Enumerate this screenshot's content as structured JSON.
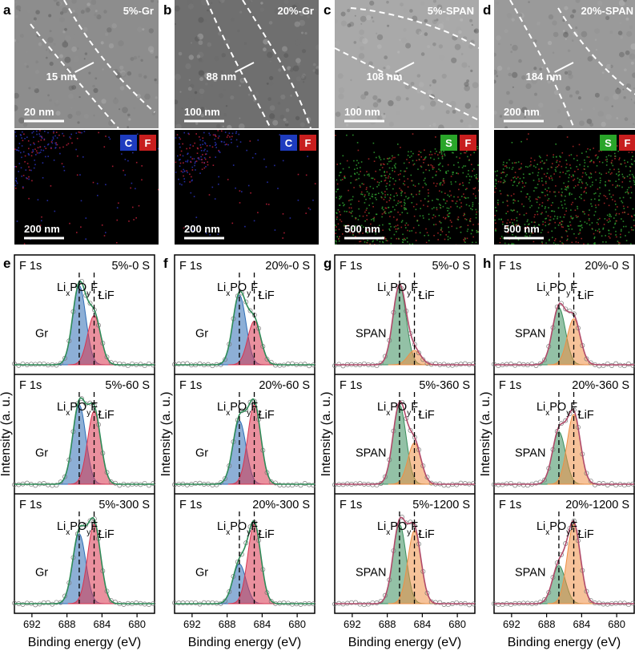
{
  "figure": {
    "image_panels": [
      {
        "letter": "a",
        "label": "5%-Gr",
        "top_scale": "20 nm",
        "dimension": "15 nm",
        "bottom_scale": "200 nm",
        "elements": [
          "C",
          "F"
        ],
        "element_colors": [
          "#1e3cbf",
          "#c81e1e"
        ],
        "top_tone": "#8d8d8d",
        "map_palette": [
          "#2a33b8",
          "#c0203a"
        ]
      },
      {
        "letter": "b",
        "label": "20%-Gr",
        "top_scale": "100 nm",
        "dimension": "88 nm",
        "bottom_scale": "200 nm",
        "elements": [
          "C",
          "F"
        ],
        "element_colors": [
          "#1e3cbf",
          "#c81e1e"
        ],
        "top_tone": "#6f6f6f",
        "map_palette": [
          "#2a33b8",
          "#c0203a"
        ]
      },
      {
        "letter": "c",
        "label": "5%-SPAN",
        "top_scale": "100 nm",
        "dimension": "108 nm",
        "bottom_scale": "500 nm",
        "elements": [
          "S",
          "F"
        ],
        "element_colors": [
          "#2aa52a",
          "#c81e1e"
        ],
        "top_tone": "#a9a9a9",
        "map_palette": [
          "#2fa030",
          "#b02828"
        ]
      },
      {
        "letter": "d",
        "label": "20%-SPAN",
        "top_scale": "200 nm",
        "dimension": "184 nm",
        "bottom_scale": "500 nm",
        "elements": [
          "S",
          "F"
        ],
        "element_colors": [
          "#2aa52a",
          "#c81e1e"
        ],
        "top_tone": "#9a9a9a",
        "map_palette": [
          "#2fa030",
          "#b02828"
        ]
      }
    ]
  },
  "chart_data": [
    {
      "letter": "e",
      "type": "line",
      "xlabel": "Binding energy (eV)",
      "ylabel": "Intensity (a. u.)",
      "xlim": [
        694,
        678
      ],
      "xticks": [
        692,
        688,
        684,
        680
      ],
      "x_reversed": true,
      "peak_positions": [
        686.6,
        684.9
      ],
      "fill_colors": [
        "#2f6db5",
        "#d8344f"
      ],
      "envelope_color": "#2e8b57",
      "rows": [
        {
          "core_level": "F 1s",
          "sample": "5%-0 S",
          "host": "Gr",
          "peak_labels": [
            "Li<sub>x</sub>PO<sub>y</sub>F<sub>z</sub>",
            "LiF"
          ],
          "peaks": [
            {
              "component": "LixPOyFz",
              "center": 686.6,
              "height": 1.0
            },
            {
              "component": "LiF",
              "center": 684.9,
              "height": 0.62
            }
          ]
        },
        {
          "core_level": "F 1s",
          "sample": "5%-60 S",
          "host": "Gr",
          "peak_labels": [
            "Li<sub>x</sub>PO<sub>y</sub>F<sub>z</sub>",
            "LiF"
          ],
          "peaks": [
            {
              "component": "LixPOyFz",
              "center": 686.6,
              "height": 1.0
            },
            {
              "component": "LiF",
              "center": 684.9,
              "height": 0.92
            }
          ]
        },
        {
          "core_level": "F 1s",
          "sample": "5%-300 S",
          "host": "Gr",
          "peak_labels": [
            "Li<sub>x</sub>PO<sub>y</sub>F<sub>z</sub>",
            "LiF"
          ],
          "peaks": [
            {
              "component": "LixPOyFz",
              "center": 686.6,
              "height": 0.88
            },
            {
              "component": "LiF",
              "center": 684.9,
              "height": 1.0
            }
          ]
        }
      ]
    },
    {
      "letter": "f",
      "type": "line",
      "xlabel": "Binding energy (eV)",
      "ylabel": "Intensity (a. u.)",
      "xlim": [
        694,
        678
      ],
      "xticks": [
        692,
        688,
        684,
        680
      ],
      "x_reversed": true,
      "peak_positions": [
        686.6,
        684.9
      ],
      "fill_colors": [
        "#2f6db5",
        "#d8344f"
      ],
      "envelope_color": "#2e8b57",
      "rows": [
        {
          "core_level": "F 1s",
          "sample": "20%-0 S",
          "host": "Gr",
          "peak_labels": [
            "Li<sub>x</sub>PO<sub>y</sub>F<sub>z</sub>",
            "LiF"
          ],
          "peaks": [
            {
              "component": "LixPOyFz",
              "center": 686.6,
              "height": 0.88
            },
            {
              "component": "LiF",
              "center": 684.9,
              "height": 0.55
            }
          ]
        },
        {
          "core_level": "F 1s",
          "sample": "20%-60 S",
          "host": "Gr",
          "peak_labels": [
            "Li<sub>x</sub>PO<sub>y</sub>F<sub>z</sub>",
            "LiF"
          ],
          "peaks": [
            {
              "component": "LixPOyFz",
              "center": 686.6,
              "height": 0.8
            },
            {
              "component": "LiF",
              "center": 684.9,
              "height": 1.0
            }
          ]
        },
        {
          "core_level": "F 1s",
          "sample": "20%-300 S",
          "host": "Gr",
          "peak_labels": [
            "Li<sub>x</sub>PO<sub>y</sub>F<sub>z</sub>",
            "LiF"
          ],
          "peaks": [
            {
              "component": "LixPOyFz",
              "center": 686.6,
              "height": 0.5
            },
            {
              "component": "LiF",
              "center": 684.9,
              "height": 1.0
            }
          ]
        }
      ]
    },
    {
      "letter": "g",
      "type": "line",
      "xlabel": "Binding energy (eV)",
      "ylabel": "Intensity (a. u.)",
      "xlim": [
        694,
        678
      ],
      "xticks": [
        692,
        688,
        684,
        680
      ],
      "x_reversed": true,
      "peak_positions": [
        686.6,
        684.9
      ],
      "fill_colors": [
        "#3a8e5c",
        "#ef8f45"
      ],
      "envelope_color": "#b04a6a",
      "rows": [
        {
          "core_level": "F 1s",
          "sample": "5%-0 S",
          "host": "SPAN",
          "peak_labels": [
            "Li<sub>x</sub>PO<sub>y</sub>F<sub>z</sub>",
            "LiF"
          ],
          "peaks": [
            {
              "component": "LixPOyFz",
              "center": 686.6,
              "height": 1.0
            },
            {
              "component": "LiF",
              "center": 684.9,
              "height": 0.18
            }
          ]
        },
        {
          "core_level": "F 1s",
          "sample": "5%-360 S",
          "host": "SPAN",
          "peak_labels": [
            "Li<sub>x</sub>PO<sub>y</sub>F<sub>z</sub>",
            "LiF"
          ],
          "peaks": [
            {
              "component": "LixPOyFz",
              "center": 686.6,
              "height": 1.0
            },
            {
              "component": "LiF",
              "center": 684.9,
              "height": 0.52
            }
          ]
        },
        {
          "core_level": "F 1s",
          "sample": "5%-1200 S",
          "host": "SPAN",
          "peak_labels": [
            "Li<sub>x</sub>PO<sub>y</sub>F<sub>z</sub>",
            "LiF"
          ],
          "peaks": [
            {
              "component": "LixPOyFz",
              "center": 686.6,
              "height": 1.0
            },
            {
              "component": "LiF",
              "center": 684.9,
              "height": 0.92
            }
          ]
        }
      ]
    },
    {
      "letter": "h",
      "type": "line",
      "xlabel": "Binding energy (eV)",
      "ylabel": "Intensity (a. u.)",
      "xlim": [
        694,
        678
      ],
      "xticks": [
        692,
        688,
        684,
        680
      ],
      "x_reversed": true,
      "peak_positions": [
        686.6,
        684.9
      ],
      "fill_colors": [
        "#3a8e5c",
        "#ef8f45"
      ],
      "envelope_color": "#b04a6a",
      "rows": [
        {
          "core_level": "F 1s",
          "sample": "20%-0 S",
          "host": "SPAN",
          "peak_labels": [
            "Li<sub>x</sub>PO<sub>y</sub>F<sub>z</sub>",
            "LiF"
          ],
          "peaks": [
            {
              "component": "LixPOyFz",
              "center": 686.6,
              "height": 0.72
            },
            {
              "component": "LiF",
              "center": 684.9,
              "height": 0.58
            }
          ]
        },
        {
          "core_level": "F 1s",
          "sample": "20%-360 S",
          "host": "SPAN",
          "peak_labels": [
            "Li<sub>x</sub>PO<sub>y</sub>F<sub>z</sub>",
            "LiF"
          ],
          "peaks": [
            {
              "component": "LixPOyFz",
              "center": 686.6,
              "height": 0.66
            },
            {
              "component": "LiF",
              "center": 684.9,
              "height": 0.88
            }
          ]
        },
        {
          "core_level": "F 1s",
          "sample": "20%-1200 S",
          "host": "SPAN",
          "peak_labels": [
            "Li<sub>x</sub>PO<sub>y</sub>F<sub>z</sub>",
            "LiF"
          ],
          "peaks": [
            {
              "component": "LixPOyFz",
              "center": 686.6,
              "height": 0.48
            },
            {
              "component": "LiF",
              "center": 684.9,
              "height": 1.0
            }
          ]
        }
      ]
    }
  ]
}
